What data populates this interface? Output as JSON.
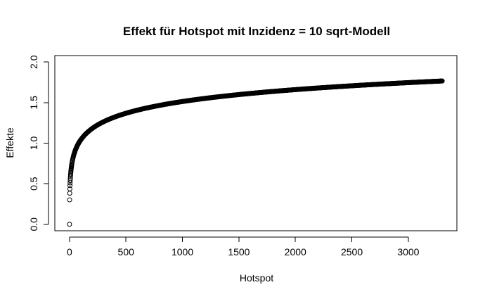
{
  "chart_data": {
    "type": "scatter",
    "title": "Effekt für Hotspot mit Inzidenz = 10 sqrt-Modell",
    "xlabel": "Hotspot",
    "ylabel": "Effekte",
    "xticks": [
      "0",
      "500",
      "1000",
      "1500",
      "2000",
      "2500",
      "3000"
    ],
    "yticks": [
      "0.0",
      "0.5",
      "1.0",
      "1.5",
      "2.0"
    ],
    "xlim": [
      -130,
      3430
    ],
    "ylim": [
      -0.08,
      2.08
    ],
    "x_range": [
      0,
      3300
    ],
    "y_formula": "log10(sqrt(x) + 1)",
    "point_marker": "open-circle",
    "grid": false,
    "legend": "none"
  }
}
